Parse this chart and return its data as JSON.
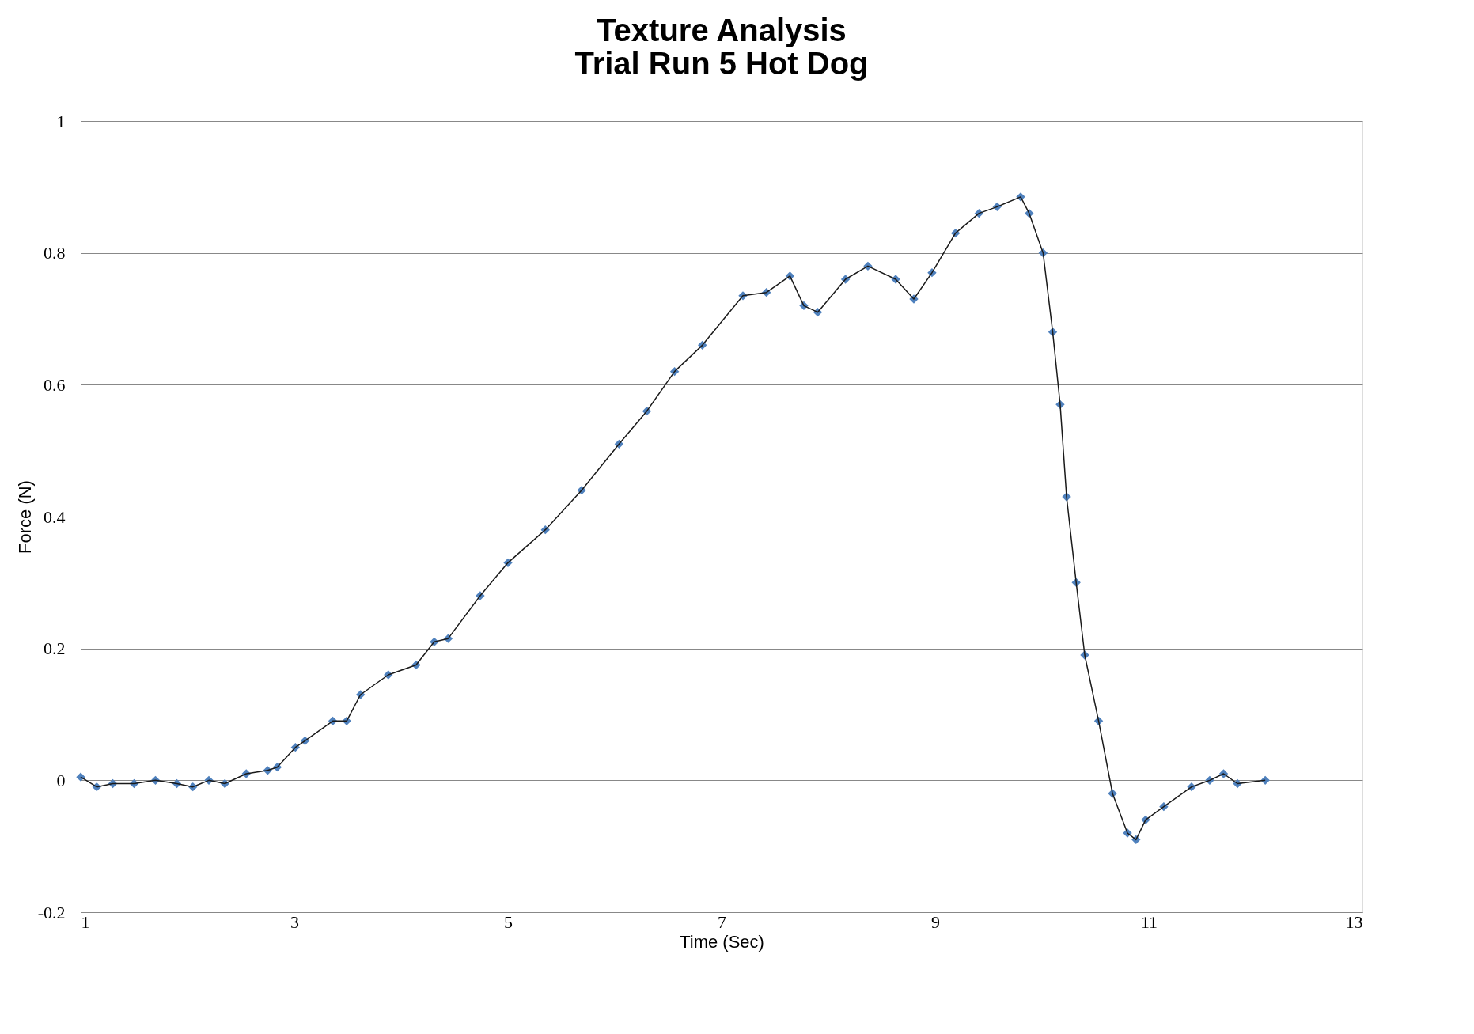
{
  "chart_data": {
    "type": "scatter",
    "title": [
      "Texture Analysis",
      "Trial Run 5 Hot Dog"
    ],
    "xlabel": "Time (Sec)",
    "ylabel": "Force (N)",
    "xlim": [
      1,
      13
    ],
    "xticks": [
      1,
      3,
      5,
      7,
      9,
      11,
      13
    ],
    "ylim": [
      -0.2,
      1
    ],
    "yticks": [
      -0.2,
      0,
      0.2,
      0.4,
      0.6,
      0.8,
      1
    ],
    "grid": "y",
    "series": [
      {
        "type": "scatter",
        "marker": "diamond",
        "color": "#4f81bd",
        "x": [
          1.0,
          1.15,
          1.3,
          1.5,
          1.7,
          1.9,
          2.05,
          2.2,
          2.35,
          2.55,
          2.75,
          2.84,
          3.01,
          3.1,
          3.36,
          3.49,
          3.62,
          3.88,
          4.14,
          4.31,
          4.44,
          4.74,
          5.0,
          5.35,
          5.69,
          6.04,
          6.3,
          6.56,
          6.82,
          7.2,
          7.42,
          7.64,
          7.77,
          7.9,
          8.16,
          8.37,
          8.63,
          8.8,
          8.97,
          9.19,
          9.41,
          9.58,
          9.8,
          9.88,
          10.01,
          10.1,
          10.17,
          10.23,
          10.32,
          10.4,
          10.53,
          10.66,
          10.8,
          10.88,
          10.97,
          11.14,
          11.4,
          11.57,
          11.7,
          11.83,
          12.09
        ],
        "values": [
          0.005,
          -0.01,
          -0.005,
          -0.005,
          0.0,
          -0.005,
          -0.01,
          0.0,
          -0.005,
          0.01,
          0.015,
          0.02,
          0.05,
          0.06,
          0.09,
          0.09,
          0.13,
          0.16,
          0.175,
          0.21,
          0.215,
          0.28,
          0.33,
          0.38,
          0.44,
          0.51,
          0.56,
          0.62,
          0.66,
          0.735,
          0.74,
          0.765,
          0.72,
          0.71,
          0.76,
          0.78,
          0.76,
          0.73,
          0.77,
          0.83,
          0.86,
          0.87,
          0.885,
          0.86,
          0.8,
          0.68,
          0.57,
          0.43,
          0.3,
          0.19,
          0.09,
          -0.02,
          -0.08,
          -0.09,
          -0.06,
          -0.04,
          -0.01,
          0.0,
          0.01,
          -0.005,
          0.0
        ]
      },
      {
        "type": "line",
        "color": "#1a1a1a",
        "line_style": "solid",
        "x": [
          1.0,
          1.15,
          1.3,
          1.5,
          1.7,
          1.9,
          2.05,
          2.2,
          2.35,
          2.55,
          2.75,
          2.84,
          3.01,
          3.1,
          3.36,
          3.49,
          3.62,
          3.88,
          4.14,
          4.31,
          4.44,
          4.74,
          5.0,
          5.35,
          5.69,
          6.04,
          6.3,
          6.56,
          6.82,
          7.2,
          7.42,
          7.64,
          7.77,
          7.9,
          8.16,
          8.37,
          8.63,
          8.8,
          8.97,
          9.19,
          9.41,
          9.58,
          9.8,
          9.88,
          10.01,
          10.1,
          10.17,
          10.23,
          10.32,
          10.4,
          10.53,
          10.66,
          10.8,
          10.88,
          10.97,
          11.14,
          11.4,
          11.57,
          11.7,
          11.83,
          12.09
        ],
        "values": [
          0.005,
          -0.01,
          -0.005,
          -0.005,
          0.0,
          -0.005,
          -0.01,
          0.0,
          -0.005,
          0.01,
          0.015,
          0.02,
          0.05,
          0.06,
          0.09,
          0.09,
          0.13,
          0.16,
          0.175,
          0.21,
          0.215,
          0.28,
          0.33,
          0.38,
          0.44,
          0.51,
          0.56,
          0.62,
          0.66,
          0.735,
          0.74,
          0.765,
          0.72,
          0.71,
          0.76,
          0.78,
          0.76,
          0.73,
          0.77,
          0.83,
          0.86,
          0.87,
          0.885,
          0.86,
          0.8,
          0.68,
          0.57,
          0.43,
          0.3,
          0.19,
          0.09,
          -0.02,
          -0.08,
          -0.09,
          -0.06,
          -0.04,
          -0.01,
          0.0,
          0.01,
          -0.005,
          0.0
        ]
      }
    ]
  }
}
